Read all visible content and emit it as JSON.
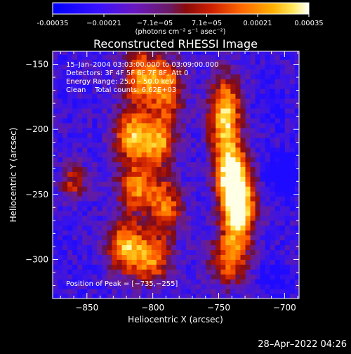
{
  "chart_data": {
    "type": "heatmap",
    "title": "Reconstructed RHESSI Image",
    "xlabel": "Heliocentric X (arcsec)",
    "ylabel": "Heliocentric Y (arcsec)",
    "xlim": [
      -876,
      -689
    ],
    "ylim": [
      -330,
      -140
    ],
    "x_ticks": [
      -850,
      -800,
      -750,
      -700
    ],
    "y_ticks": [
      -300,
      -250,
      -200,
      -150
    ],
    "x_tick_labels": [
      "−850",
      "−800",
      "−750",
      "−700"
    ],
    "y_tick_labels": [
      "−300",
      "−250",
      "−200",
      "−150"
    ],
    "colorbar": {
      "range": [
        -0.00035,
        0.00035
      ],
      "tick_values": [
        -0.00035,
        -0.00021,
        -7.1e-05,
        7.1e-05,
        0.00021,
        0.00035
      ],
      "tick_labels": [
        "-0.00035",
        "−0.00021",
        "−7.1e−05",
        "7.1e−05",
        "0.00021",
        "0.00035"
      ],
      "units": "(photons cm⁻² s⁻¹ asec⁻²)"
    },
    "annotations": [
      "15–Jan–2004 03:03:00.000 to 03:09:00.000",
      "Detectors: 3F 4F 5F 6F 7F 8F, Att 0",
      "Energy Range: 25.0 – 50.0 keV",
      "Clean    Total counts: 6.62E+03"
    ],
    "peak_label": "Position of Peak = [−735,−255]",
    "peak": [
      -735,
      -255
    ],
    "colors": {
      "background": "#000000",
      "colormap": [
        "#0000ff",
        "#3a22ff",
        "#5b1ae8",
        "#6b1fb0",
        "#7a1a7a",
        "#9a1a1a",
        "#cc1a00",
        "#ff4400",
        "#ff8800",
        "#ffbb11",
        "#ffee55",
        "#ffffff"
      ]
    }
  },
  "footer": {
    "date": "28–Apr–2022 04:26"
  }
}
